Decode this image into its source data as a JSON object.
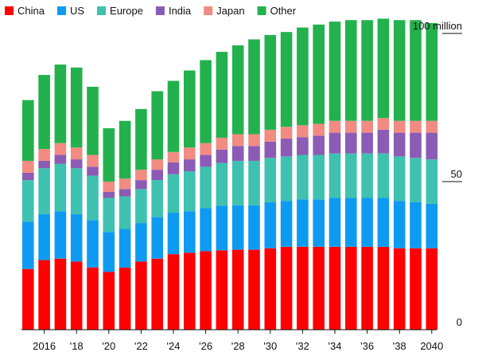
{
  "chart_data": {
    "type": "bar",
    "stacked": true,
    "categories": [
      "2015",
      "2016",
      "2017",
      "2018",
      "2019",
      "2020",
      "2021",
      "2022",
      "2023",
      "2024",
      "2025",
      "2026",
      "2027",
      "2028",
      "2029",
      "2030",
      "2031",
      "2032",
      "2033",
      "2034",
      "2035",
      "2036",
      "2037",
      "2038",
      "2039",
      "2040"
    ],
    "series": [
      {
        "name": "China",
        "color": "#ff0000",
        "values": [
          20.5,
          23.5,
          24,
          23,
          21,
          19.5,
          21,
          23,
          24,
          25.5,
          26,
          26.5,
          26.8,
          27,
          27,
          27.5,
          28,
          28,
          28,
          28,
          28,
          28,
          28,
          27.5,
          27.5,
          27.5
        ]
      },
      {
        "name": "US",
        "color": "#0d9bf2",
        "values": [
          16,
          15.5,
          16,
          16,
          16,
          13.5,
          13,
          13,
          14,
          14,
          14,
          14.5,
          15,
          15,
          15,
          15.5,
          15.5,
          16,
          16,
          16.5,
          16.5,
          16.5,
          16.5,
          16,
          15.5,
          15
        ]
      },
      {
        "name": "Europe",
        "color": "#3fc1b0",
        "values": [
          14,
          15.5,
          16,
          15.5,
          15,
          11.5,
          11,
          11.5,
          12.5,
          13,
          13.5,
          14,
          14.5,
          15,
          15,
          15,
          15,
          15,
          15,
          15,
          15,
          15,
          15,
          15,
          15,
          15
        ]
      },
      {
        "name": "India",
        "color": "#8c5bb5",
        "values": [
          2.5,
          2.5,
          3,
          3,
          3,
          2,
          2.5,
          3,
          3.5,
          4,
          4,
          4,
          4.5,
          5,
          5,
          5.5,
          6,
          6,
          6.5,
          7,
          7,
          7,
          8,
          8,
          8.5,
          9
        ]
      },
      {
        "name": "Japan",
        "color": "#f28b82",
        "values": [
          4,
          4,
          4,
          4,
          4,
          3.5,
          3.5,
          3.5,
          3.5,
          3.5,
          4,
          4,
          4,
          4,
          4,
          4,
          4,
          4,
          4,
          4,
          4,
          4,
          4,
          4,
          4,
          4
        ]
      },
      {
        "name": "Other",
        "color": "#23b14d",
        "values": [
          20.5,
          25,
          26.5,
          27,
          23,
          18,
          19.5,
          20.5,
          23,
          24,
          26,
          28,
          29,
          30,
          32,
          32,
          32,
          33,
          33.5,
          33.5,
          34,
          34,
          33.5,
          34,
          34,
          33
        ]
      }
    ],
    "ylim": [
      0,
      100
    ],
    "y_ticks": [
      {
        "value": 0,
        "label": "0"
      },
      {
        "value": 50,
        "label": "50"
      },
      {
        "value": 100,
        "label": "100 million"
      }
    ],
    "x_tick_labels": [
      {
        "index": 1,
        "label": "2016"
      },
      {
        "index": 3,
        "label": "'18"
      },
      {
        "index": 5,
        "label": "'20"
      },
      {
        "index": 7,
        "label": "'22"
      },
      {
        "index": 9,
        "label": "'24"
      },
      {
        "index": 11,
        "label": "'26"
      },
      {
        "index": 13,
        "label": "'28"
      },
      {
        "index": 15,
        "label": "'30"
      },
      {
        "index": 17,
        "label": "'32"
      },
      {
        "index": 19,
        "label": "'34"
      },
      {
        "index": 21,
        "label": "'36"
      },
      {
        "index": 23,
        "label": "'38"
      },
      {
        "index": 25,
        "label": "2040"
      }
    ],
    "legend_position": "top-left",
    "title": "",
    "xlabel": "",
    "ylabel": ""
  }
}
